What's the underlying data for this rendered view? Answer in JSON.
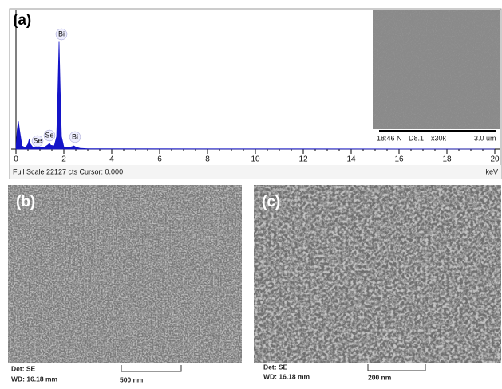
{
  "panel_labels": [
    "(a)",
    "(b)",
    "(c)"
  ],
  "chart_data": {
    "type": "area",
    "x": [
      0,
      0.05,
      0.1,
      0.15,
      0.25,
      0.4,
      0.5,
      0.55,
      0.6,
      0.7,
      0.9,
      1.2,
      1.35,
      1.4,
      1.45,
      1.6,
      1.7,
      1.75,
      1.8,
      1.85,
      1.9,
      2.0,
      2.2,
      2.35,
      2.42,
      2.5,
      2.7,
      3.0,
      20
    ],
    "values": [
      0,
      3000,
      4400,
      3000,
      500,
      200,
      800,
      1500,
      800,
      300,
      200,
      300,
      700,
      900,
      600,
      500,
      2000,
      9000,
      17000,
      9000,
      2000,
      300,
      200,
      400,
      500,
      300,
      100,
      50,
      0
    ],
    "color": "#1414c8",
    "xlim": [
      0,
      20
    ],
    "xticks": [
      0,
      2,
      4,
      6,
      8,
      10,
      12,
      14,
      16,
      18,
      20
    ],
    "ylim": [
      0,
      22127
    ],
    "x_unit": "keV",
    "footer": "Full Scale 22127 cts Cursor: 0.000",
    "annotations": [
      "Bi",
      "Se",
      "Se",
      "Bi"
    ]
  },
  "inset": {
    "time": "18:46 N",
    "detector": "D8.1",
    "magnification": "x30k",
    "scale": "3.0 um"
  },
  "sem_b": {
    "detector": "Det: SE",
    "wd": "WD: 16.18 mm",
    "scale": "500 nm"
  },
  "sem_c": {
    "detector": "Det: SE",
    "wd": "WD: 16.18 mm",
    "scale": "200 nm"
  }
}
